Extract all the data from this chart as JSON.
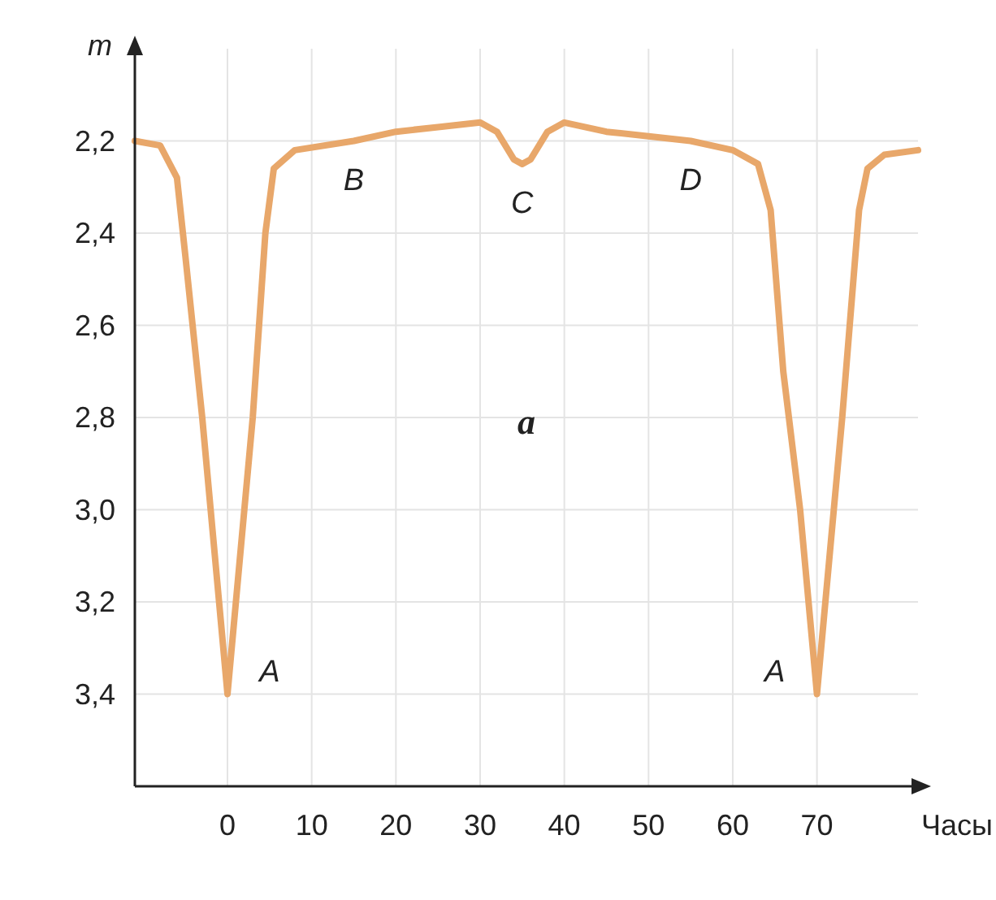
{
  "chart_data": {
    "type": "line",
    "xlabel": "Часы",
    "ylabel": "m",
    "x": [
      -11,
      -8,
      -6,
      -5,
      -3,
      -1,
      0,
      1,
      3,
      4.5,
      5.5,
      8,
      15,
      20,
      25,
      30,
      32,
      34,
      35,
      36,
      38,
      40,
      45,
      50,
      55,
      60,
      63,
      64.5,
      66,
      68,
      70,
      71,
      73,
      75,
      76,
      78,
      82
    ],
    "series": [
      {
        "color": "#e8a76a",
        "values": [
          2.2,
          2.21,
          2.28,
          2.45,
          2.8,
          3.2,
          3.4,
          3.2,
          2.8,
          2.4,
          2.26,
          2.22,
          2.2,
          2.18,
          2.17,
          2.16,
          2.18,
          2.24,
          2.25,
          2.24,
          2.18,
          2.16,
          2.18,
          2.19,
          2.2,
          2.22,
          2.25,
          2.35,
          2.7,
          3.0,
          3.4,
          3.2,
          2.8,
          2.35,
          2.26,
          2.23,
          2.22
        ]
      }
    ],
    "xlim": [
      -11,
      82
    ],
    "ylim": [
      3.6,
      2.0
    ],
    "xticks": [
      0,
      10,
      20,
      30,
      40,
      50,
      60,
      70
    ],
    "yticks": [
      {
        "value": 2.2,
        "label": "2,2"
      },
      {
        "value": 2.4,
        "label": "2,4"
      },
      {
        "value": 2.6,
        "label": "2,6"
      },
      {
        "value": 2.8,
        "label": "2,8"
      },
      {
        "value": 3.0,
        "label": "3,0"
      },
      {
        "value": 3.2,
        "label": "3,2"
      },
      {
        "value": 3.4,
        "label": "3,4"
      }
    ],
    "grid": true,
    "marker": "none",
    "line_style": "solid",
    "annotations": [
      {
        "text": "A",
        "x": 0,
        "y": 3.4
      },
      {
        "text": "B",
        "x": 15,
        "y": 2.2
      },
      {
        "text": "C",
        "x": 35,
        "y": 2.25
      },
      {
        "text": "D",
        "x": 55,
        "y": 2.2
      },
      {
        "text": "A",
        "x": 70,
        "y": 3.4
      },
      "a"
    ]
  }
}
